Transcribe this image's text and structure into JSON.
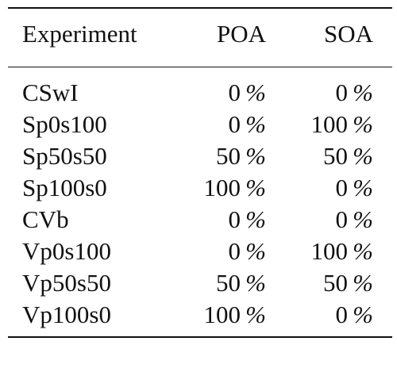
{
  "table": {
    "headers": {
      "experiment": "Experiment",
      "poa": "POA",
      "soa": "SOA"
    },
    "rows": [
      {
        "experiment": "CSwI",
        "poa": "0",
        "soa": "0",
        "unit": "%"
      },
      {
        "experiment": "Sp0s100",
        "poa": "0",
        "soa": "100",
        "unit": "%"
      },
      {
        "experiment": "Sp50s50",
        "poa": "50",
        "soa": "50",
        "unit": "%"
      },
      {
        "experiment": "Sp100s0",
        "poa": "100",
        "soa": "0",
        "unit": "%"
      },
      {
        "experiment": "CVb",
        "poa": "0",
        "soa": "0",
        "unit": "%"
      },
      {
        "experiment": "Vp0s100",
        "poa": "0",
        "soa": "100",
        "unit": "%"
      },
      {
        "experiment": "Vp50s50",
        "poa": "50",
        "soa": "50",
        "unit": "%"
      },
      {
        "experiment": "Vp100s0",
        "poa": "100",
        "soa": "0",
        "unit": "%"
      }
    ]
  }
}
